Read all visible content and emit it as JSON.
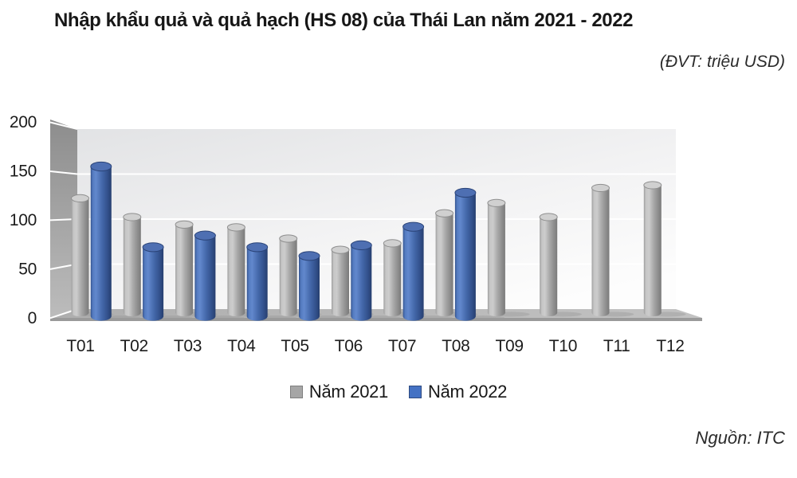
{
  "header": {
    "title": "Nhập khẩu quả và quả hạch (HS 08) của Thái Lan năm 2021 - 2022",
    "unit_label": "(ĐVT: triệu USD)"
  },
  "footer": {
    "source": "Nguồn: ITC"
  },
  "legend": {
    "items": [
      {
        "label": "Năm 2021",
        "color": "#a6a6a6"
      },
      {
        "label": "Năm 2022",
        "color": "#4472c4"
      }
    ]
  },
  "chart_data": {
    "type": "bar",
    "style": "3d-cylinder",
    "title": "Nhập khẩu quả và quả hạch (HS 08) của Thái Lan năm 2021 - 2022",
    "unit": "triệu USD",
    "categories": [
      "T01",
      "T02",
      "T03",
      "T04",
      "T05",
      "T06",
      "T07",
      "T08",
      "T09",
      "T10",
      "T11",
      "T12"
    ],
    "series": [
      {
        "name": "Năm 2021",
        "color": "#a6a6a6",
        "values": [
          122,
          102,
          94,
          91,
          79,
          67,
          74,
          106,
          117,
          102,
          133,
          136
        ]
      },
      {
        "name": "Năm 2022",
        "color": "#4472c4",
        "values": [
          154,
          71,
          83,
          71,
          62,
          73,
          92,
          127,
          null,
          null,
          null,
          null
        ]
      }
    ],
    "ylim": [
      0,
      200
    ],
    "yticks": [
      0,
      50,
      100,
      150,
      200
    ],
    "grid": true,
    "legend_position": "bottom",
    "source": "Nguồn: ITC"
  }
}
